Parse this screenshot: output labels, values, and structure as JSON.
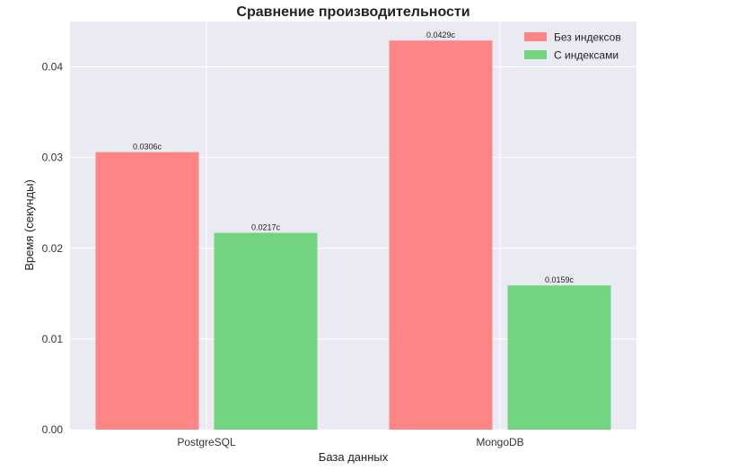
{
  "chart_data": {
    "type": "bar",
    "title": "Сравнение производительности",
    "xlabel": "База данных",
    "ylabel": "Время (секунды)",
    "categories": [
      "PostgreSQL",
      "MongoDB"
    ],
    "series": [
      {
        "name": "Без индексов",
        "values": [
          0.0306,
          0.0429
        ],
        "labels": [
          "0.0306с",
          "0.0429с"
        ],
        "color": "#fd8585"
      },
      {
        "name": "С индексами",
        "values": [
          0.0217,
          0.0159
        ],
        "labels": [
          "0.0217с",
          "0.0159с"
        ],
        "color": "#72d480"
      }
    ],
    "ylim": [
      0,
      0.045
    ],
    "yticks": [
      0.0,
      0.01,
      0.02,
      0.03,
      0.04
    ],
    "ytick_labels": [
      "0.00",
      "0.01",
      "0.02",
      "0.03",
      "0.04"
    ],
    "grid": true,
    "legend": "top-right",
    "background": "#eaeaf2"
  }
}
